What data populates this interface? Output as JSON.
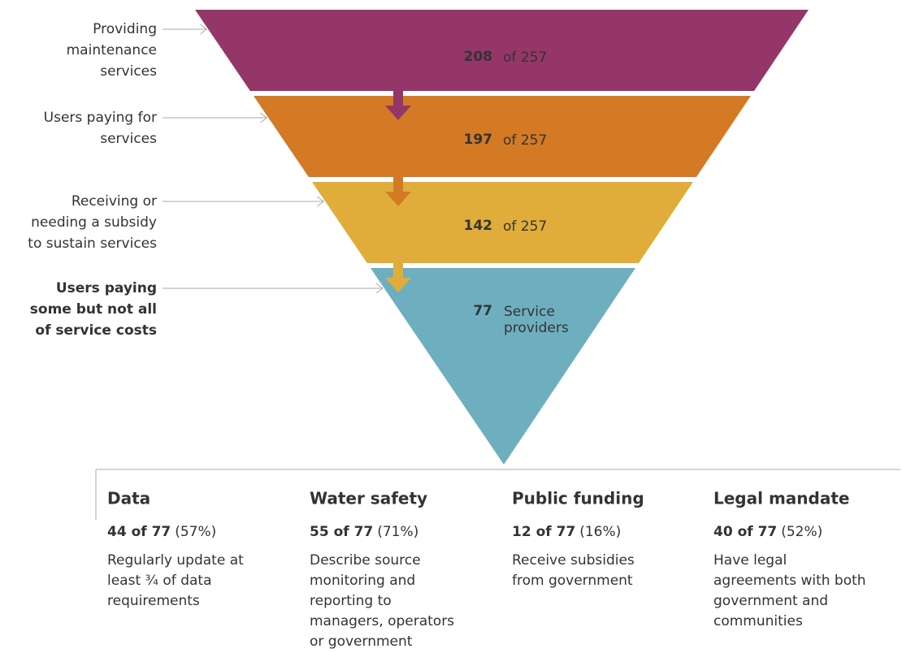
{
  "funnel": [
    {
      "label": [
        "Providing",
        "maintenance",
        "services"
      ],
      "value": "208",
      "note": [
        "of 257"
      ]
    },
    {
      "label": [
        "Users paying for",
        "services"
      ],
      "value": "197",
      "note": [
        "of 257"
      ]
    },
    {
      "label": [
        "Receiving or",
        "needing a subsidy",
        "to sustain services"
      ],
      "value": "142",
      "note": [
        "of 257"
      ]
    },
    {
      "label": [
        "Users paying",
        "some but not all",
        "of service costs"
      ],
      "value": "77",
      "note": [
        "Service",
        "providers"
      ]
    }
  ],
  "metrics": [
    {
      "title": "Data",
      "count": "44 of 77",
      "percent": "(57%)",
      "description": [
        "Regularly update at",
        "least ¾ of data",
        "requirements"
      ]
    },
    {
      "title": "Water safety",
      "count": "55 of 77",
      "percent": "(71%)",
      "description": [
        "Describe source",
        "monitoring and",
        "reporting to",
        "managers, operators",
        "or government"
      ]
    },
    {
      "title": "Public funding",
      "count": "12 of 77",
      "percent": "(16%)",
      "description": [
        "Receive subsidies",
        "from government"
      ]
    },
    {
      "title": "Legal mandate",
      "count": "40 of 77",
      "percent": "(52%)",
      "description": [
        "Have legal",
        "agreements with both",
        "government and",
        "communities"
      ]
    }
  ]
}
